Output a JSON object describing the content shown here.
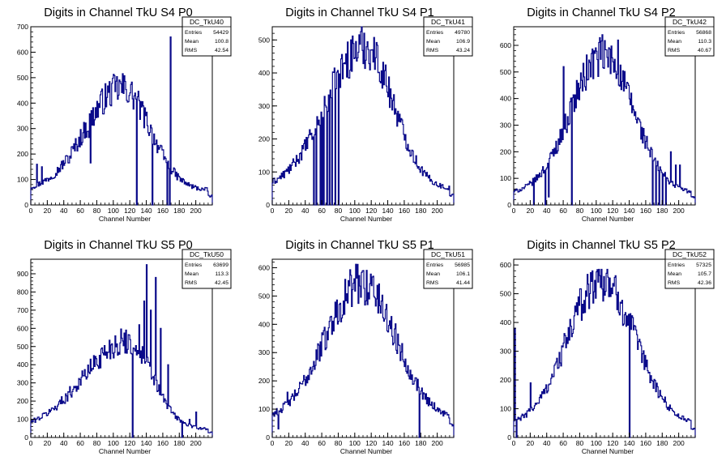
{
  "chart_data": [
    {
      "type": "histogram",
      "title": "Digits in Channel TkU S4 P0",
      "xlabel": "Channel Number",
      "xlim": [
        0,
        220
      ],
      "ylim": [
        0,
        700
      ],
      "x_ticks": [
        0,
        20,
        40,
        60,
        80,
        100,
        120,
        140,
        160,
        180,
        200
      ],
      "y_ticks": [
        100,
        200,
        300,
        400,
        500,
        600,
        700
      ],
      "stats": {
        "name": "DC_TkU40",
        "entries": "54429",
        "mean": "100.8",
        "rms": "42.54"
      },
      "entries_label": "Entries",
      "mean_label": "Mean",
      "rms_label": "RMS",
      "shape": {
        "center": 110,
        "peak": 460,
        "left": 0.68,
        "right": 0.54,
        "floor": 55
      },
      "spikes": [
        [
          7,
          160
        ],
        [
          13,
          150
        ],
        [
          46,
          165
        ],
        [
          70,
          265
        ],
        [
          72,
          165
        ],
        [
          128,
          0
        ],
        [
          147,
          0
        ],
        [
          165,
          0
        ],
        [
          169,
          660
        ],
        [
          168,
          0
        ]
      ]
    },
    {
      "type": "histogram",
      "title": "Digits in Channel TkU S4 P1",
      "xlabel": "Channel Number",
      "xlim": [
        0,
        220
      ],
      "ylim": [
        0,
        540
      ],
      "x_ticks": [
        0,
        20,
        40,
        60,
        80,
        100,
        120,
        140,
        160,
        180,
        200
      ],
      "y_ticks": [
        100,
        200,
        300,
        400,
        500
      ],
      "stats": {
        "name": "DC_TkU41",
        "entries": "49780",
        "mean": "106.9",
        "rms": "43.24"
      },
      "entries_label": "Entries",
      "mean_label": "Mean",
      "rms_label": "RMS",
      "shape": {
        "center": 112,
        "peak": 480,
        "left": 0.72,
        "right": 0.56,
        "floor": 45
      },
      "spikes": [
        [
          50,
          0
        ],
        [
          53,
          0
        ],
        [
          58,
          0
        ],
        [
          60,
          0
        ],
        [
          62,
          0
        ],
        [
          66,
          0
        ],
        [
          69,
          0
        ],
        [
          72,
          0
        ],
        [
          76,
          0
        ],
        [
          80,
          0
        ]
      ]
    },
    {
      "type": "histogram",
      "title": "Digits in Channel TkU S4 P2",
      "xlabel": "Channel Number",
      "xlim": [
        0,
        220
      ],
      "ylim": [
        0,
        670
      ],
      "x_ticks": [
        0,
        20,
        40,
        60,
        80,
        100,
        120,
        140,
        160,
        180,
        200
      ],
      "y_ticks": [
        100,
        200,
        300,
        400,
        500,
        600
      ],
      "stats": {
        "name": "DC_TkU42",
        "entries": "56868",
        "mean": "110.3",
        "rms": "40.67"
      },
      "entries_label": "Entries",
      "mean_label": "Mean",
      "rms_label": "RMS",
      "shape": {
        "center": 108,
        "peak": 560,
        "left": 0.62,
        "right": 0.58,
        "floor": 40
      },
      "spikes": [
        [
          24,
          0
        ],
        [
          38,
          0
        ],
        [
          42,
          30
        ],
        [
          60,
          520
        ],
        [
          70,
          0
        ],
        [
          107,
          640
        ],
        [
          126,
          620
        ],
        [
          168,
          0
        ],
        [
          172,
          0
        ],
        [
          176,
          0
        ],
        [
          180,
          0
        ],
        [
          184,
          0
        ],
        [
          190,
          200
        ],
        [
          196,
          150
        ],
        [
          201,
          150
        ]
      ]
    },
    {
      "type": "histogram",
      "title": "Digits in Channel TkU S5 P0",
      "xlabel": "Channel Number",
      "xlim": [
        0,
        220
      ],
      "ylim": [
        0,
        980
      ],
      "x_ticks": [
        0,
        20,
        40,
        60,
        80,
        100,
        120,
        140,
        160,
        180,
        200
      ],
      "y_ticks": [
        100,
        200,
        300,
        400,
        500,
        600,
        700,
        800,
        900
      ],
      "stats": {
        "name": "DC_TkU50",
        "entries": "63699",
        "mean": "113.3",
        "rms": "42.45"
      },
      "entries_label": "Entries",
      "mean_label": "Mean",
      "rms_label": "RMS",
      "shape": {
        "center": 118,
        "peak": 530,
        "left": 0.78,
        "right": 0.5,
        "floor": 45
      },
      "spikes": [
        [
          123,
          0
        ],
        [
          131,
          620
        ],
        [
          137,
          750
        ],
        [
          140,
          950
        ],
        [
          145,
          700
        ],
        [
          151,
          880
        ],
        [
          157,
          600
        ],
        [
          166,
          400
        ],
        [
          183,
          0
        ],
        [
          192,
          100
        ],
        [
          200,
          140
        ]
      ]
    },
    {
      "type": "histogram",
      "title": "Digits in Channel TkU S5 P1",
      "xlabel": "Channel Number",
      "xlim": [
        0,
        220
      ],
      "ylim": [
        0,
        630
      ],
      "x_ticks": [
        0,
        20,
        40,
        60,
        80,
        100,
        120,
        140,
        160,
        180,
        200
      ],
      "y_ticks": [
        100,
        200,
        300,
        400,
        500,
        600
      ],
      "stats": {
        "name": "DC_TkU51",
        "entries": "56985",
        "mean": "106.1",
        "rms": "41.44"
      },
      "entries_label": "Entries",
      "mean_label": "Mean",
      "rms_label": "RMS",
      "shape": {
        "center": 108,
        "peak": 545,
        "left": 0.7,
        "right": 0.64,
        "floor": 60
      },
      "spikes": [
        [
          7,
          30
        ],
        [
          18,
          160
        ],
        [
          110,
          590
        ],
        [
          122,
          570
        ],
        [
          178,
          0
        ]
      ]
    },
    {
      "type": "histogram",
      "title": "Digits in Channel TkU S5 P2",
      "xlabel": "Channel Number",
      "xlim": [
        0,
        220
      ],
      "ylim": [
        0,
        620
      ],
      "x_ticks": [
        0,
        20,
        40,
        60,
        80,
        100,
        120,
        140,
        160,
        180,
        200
      ],
      "y_ticks": [
        100,
        200,
        300,
        400,
        500,
        600
      ],
      "stats": {
        "name": "DC_TkU52",
        "entries": "57325",
        "mean": "105.7",
        "rms": "42.36"
      },
      "entries_label": "Entries",
      "mean_label": "Mean",
      "rms_label": "RMS",
      "shape": {
        "center": 106,
        "peak": 550,
        "left": 0.66,
        "right": 0.62,
        "floor": 40
      },
      "spikes": [
        [
          1,
          380
        ],
        [
          3,
          0
        ],
        [
          20,
          190
        ],
        [
          103,
          585
        ],
        [
          113,
          585
        ],
        [
          119,
          500
        ],
        [
          140,
          0
        ]
      ]
    }
  ]
}
